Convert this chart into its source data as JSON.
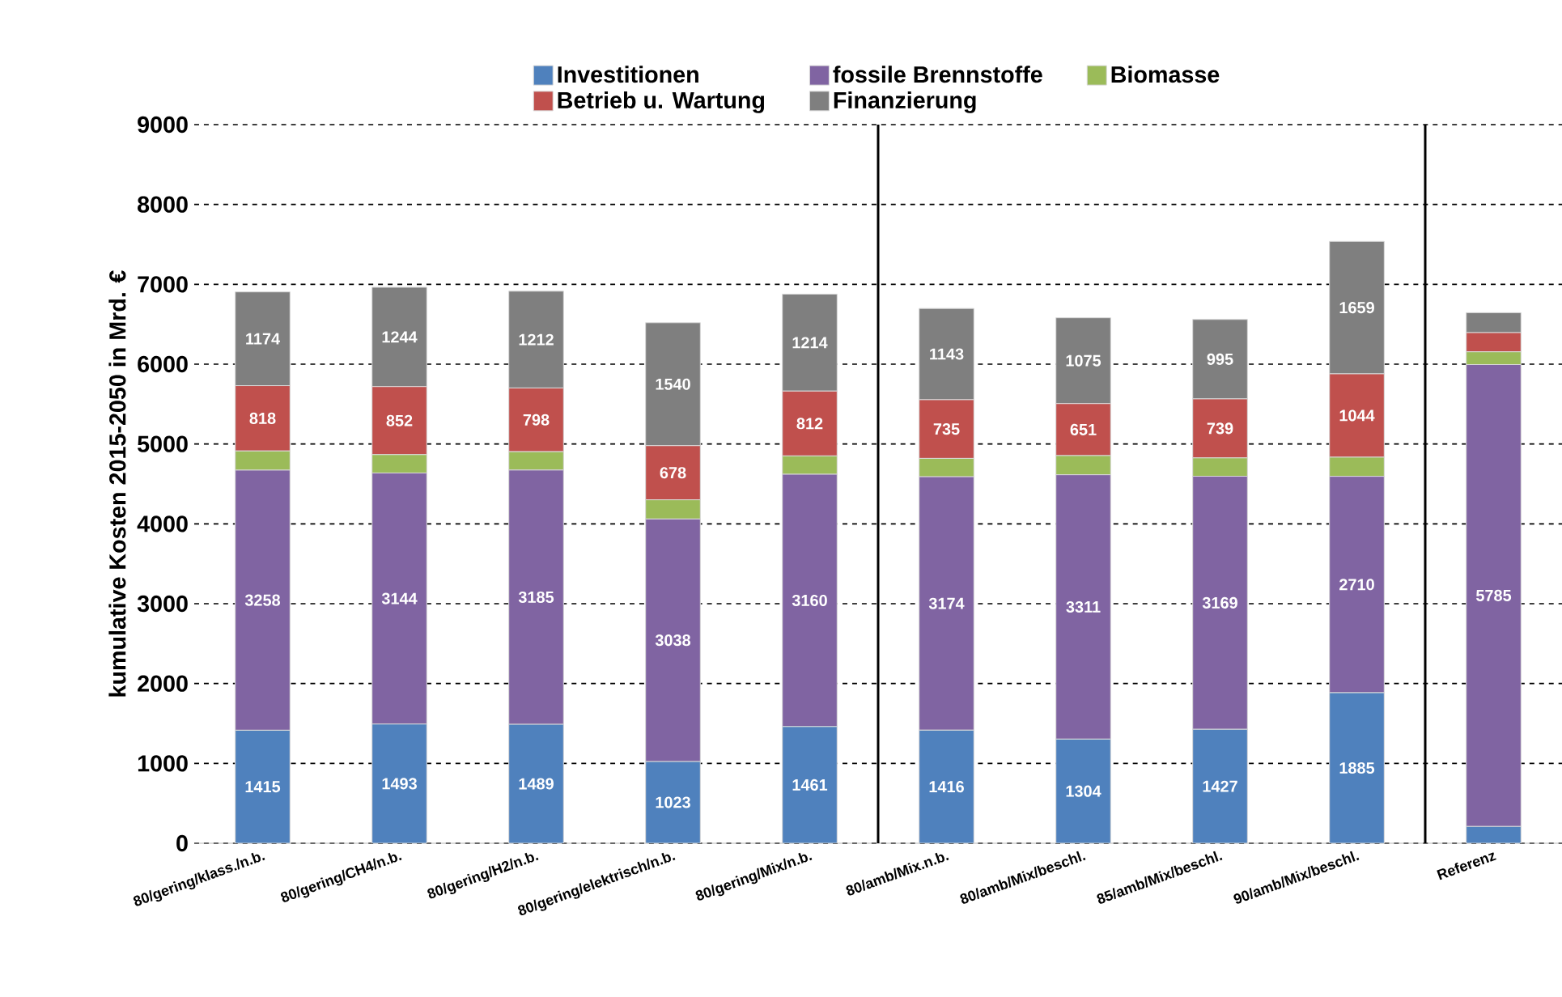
{
  "chart_data": {
    "type": "bar",
    "stacked": true,
    "ylabel": "kumulative Kosten 2015-2050 in Mrd. €",
    "categories": [
      "80/gering/klass./n.b.",
      "80/gering/CH4/n.b.",
      "80/gering/H2/n.b.",
      "80/gering/elektrisch/n.b.",
      "80/gering/Mix/n.b.",
      "80/amb/Mix.n.b.",
      "80/amb/Mix/beschl.",
      "85/amb/Mix/beschl.",
      "90/amb/Mix/beschl.",
      "Referenz"
    ],
    "series": [
      {
        "name": "Investitionen",
        "color": "#4f81bd",
        "values": [
          1415,
          1493,
          1489,
          1023,
          1461,
          1416,
          1304,
          1427,
          1885,
          210
        ],
        "value_labels": [
          "1415",
          "1493",
          "1489",
          "1023",
          "1461",
          "1416",
          "1304",
          "1427",
          "1885",
          null
        ]
      },
      {
        "name": "fossile Brennstoffe",
        "color": "#8064a2",
        "values": [
          3258,
          3144,
          3185,
          3038,
          3160,
          3174,
          3311,
          3169,
          2710,
          5785
        ],
        "value_labels": [
          "3258",
          "3144",
          "3185",
          "3038",
          "3160",
          "3174",
          "3311",
          "3169",
          "2710",
          "5785"
        ]
      },
      {
        "name": "Biomasse",
        "color": "#9bbb59",
        "values": [
          240,
          230,
          230,
          240,
          230,
          230,
          240,
          230,
          240,
          160
        ]
      },
      {
        "name": "Betrieb u. Wartung",
        "color": "#c0504d",
        "values": [
          818,
          852,
          798,
          678,
          812,
          735,
          651,
          739,
          1044,
          240
        ],
        "value_labels": [
          "818",
          "852",
          "798",
          "678",
          "812",
          "735",
          "651",
          "739",
          "1044",
          null
        ]
      },
      {
        "name": "Finanzierung",
        "color": "#7f7f7f",
        "values": [
          1174,
          1244,
          1212,
          1540,
          1214,
          1143,
          1075,
          995,
          1659,
          250
        ],
        "value_labels": [
          "1174",
          "1244",
          "1212",
          "1540",
          "1214",
          "1143",
          "1075",
          "995",
          "1659",
          null
        ]
      }
    ],
    "ylim": [
      0,
      9000
    ],
    "yticks": [
      0,
      1000,
      2000,
      3000,
      4000,
      5000,
      6000,
      7000,
      8000,
      9000
    ],
    "grid": "y",
    "legend": "top"
  }
}
